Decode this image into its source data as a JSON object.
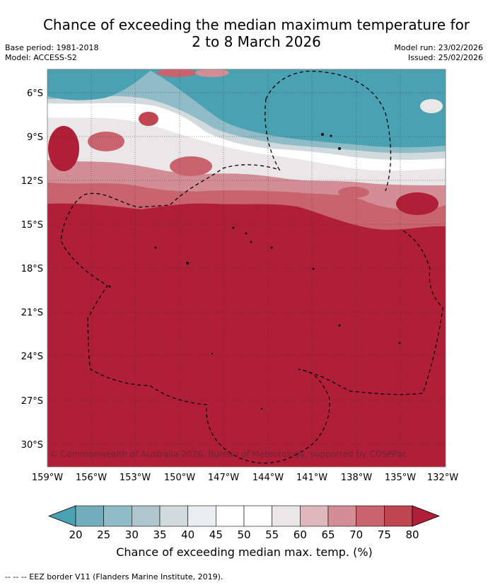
{
  "title_line1": "Chance of exceeding the median maximum temperature for",
  "title_line2": "2 to 8 March 2026",
  "base_period": "Base period: 1981-2018",
  "model": "Model: ACCESS-S2",
  "model_run": "Model run: 23/02/2026",
  "issued": "Issued: 25/02/2026",
  "copyright": "© Commonwealth of Australia 2026, Bureau of Meteorology, supported by COSPPac",
  "lat_labels": [
    "6°S",
    "9°S",
    "12°S",
    "15°S",
    "18°S",
    "21°S",
    "24°S",
    "27°S",
    "30°S"
  ],
  "lon_labels": [
    "159°W",
    "156°W",
    "153°W",
    "150°W",
    "147°W",
    "144°W",
    "141°W",
    "138°W",
    "135°W",
    "132°W"
  ],
  "colorbar": {
    "ticks": [
      "20",
      "25",
      "30",
      "35",
      "40",
      "45",
      "50",
      "55",
      "60",
      "65",
      "70",
      "75",
      "80"
    ],
    "colors": [
      "#4aa1b2",
      "#71aebb",
      "#8fbcc6",
      "#aec6cc",
      "#d1dadd",
      "#e9eff1",
      "#ffffff",
      "#ffffff",
      "#e9e7e8",
      "#dfb8be",
      "#d38d95",
      "#c9636e",
      "#bf4650",
      "#b01e38"
    ],
    "title": "Chance of exceeding median max. temp. (%)"
  },
  "footnote": "--  --  -- EEZ border V11 (Flanders Marine Institute, 2019)."
}
